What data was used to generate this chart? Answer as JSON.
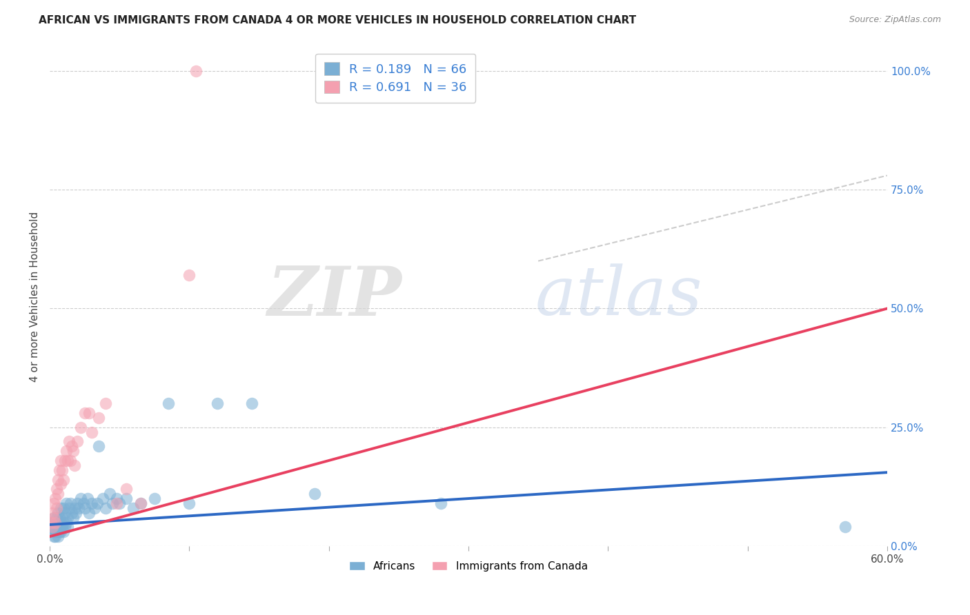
{
  "title": "AFRICAN VS IMMIGRANTS FROM CANADA 4 OR MORE VEHICLES IN HOUSEHOLD CORRELATION CHART",
  "source": "Source: ZipAtlas.com",
  "ylabel": "4 or more Vehicles in Household",
  "x_min": 0.0,
  "x_max": 0.6,
  "y_min": 0.0,
  "y_max": 1.05,
  "x_ticks": [
    0.0,
    0.1,
    0.2,
    0.3,
    0.4,
    0.5,
    0.6
  ],
  "x_tick_labels": [
    "0.0%",
    "",
    "",
    "",
    "",
    "",
    "60.0%"
  ],
  "y_tick_labels_right": [
    "0.0%",
    "25.0%",
    "50.0%",
    "75.0%",
    "100.0%"
  ],
  "y_tick_vals_right": [
    0.0,
    0.25,
    0.5,
    0.75,
    1.0
  ],
  "legend_africans_R": "0.189",
  "legend_africans_N": "66",
  "legend_canada_R": "0.691",
  "legend_canada_N": "36",
  "color_africans": "#7BAFD4",
  "color_canada": "#F4A0B0",
  "color_line_africans": "#2C68C4",
  "color_line_canada": "#E84060",
  "color_line_dashed": "#CCCCCC",
  "watermark_zip": "ZIP",
  "watermark_atlas": "atlas",
  "africans_x": [
    0.001,
    0.002,
    0.002,
    0.003,
    0.003,
    0.003,
    0.004,
    0.004,
    0.004,
    0.005,
    0.005,
    0.005,
    0.006,
    0.006,
    0.006,
    0.007,
    0.007,
    0.007,
    0.008,
    0.008,
    0.008,
    0.009,
    0.009,
    0.01,
    0.01,
    0.01,
    0.011,
    0.011,
    0.012,
    0.012,
    0.013,
    0.013,
    0.014,
    0.015,
    0.016,
    0.017,
    0.018,
    0.019,
    0.02,
    0.021,
    0.022,
    0.024,
    0.025,
    0.027,
    0.028,
    0.03,
    0.032,
    0.034,
    0.035,
    0.038,
    0.04,
    0.043,
    0.045,
    0.048,
    0.05,
    0.055,
    0.06,
    0.065,
    0.075,
    0.085,
    0.1,
    0.12,
    0.145,
    0.19,
    0.28,
    0.57
  ],
  "africans_y": [
    0.04,
    0.03,
    0.05,
    0.02,
    0.04,
    0.06,
    0.03,
    0.05,
    0.02,
    0.04,
    0.06,
    0.03,
    0.05,
    0.02,
    0.07,
    0.04,
    0.06,
    0.03,
    0.05,
    0.03,
    0.08,
    0.04,
    0.06,
    0.05,
    0.03,
    0.08,
    0.04,
    0.07,
    0.05,
    0.09,
    0.06,
    0.04,
    0.08,
    0.09,
    0.07,
    0.06,
    0.08,
    0.07,
    0.09,
    0.08,
    0.1,
    0.09,
    0.08,
    0.1,
    0.07,
    0.09,
    0.08,
    0.09,
    0.21,
    0.1,
    0.08,
    0.11,
    0.09,
    0.1,
    0.09,
    0.1,
    0.08,
    0.09,
    0.1,
    0.3,
    0.09,
    0.3,
    0.3,
    0.11,
    0.09,
    0.04
  ],
  "canada_x": [
    0.001,
    0.002,
    0.002,
    0.003,
    0.003,
    0.004,
    0.004,
    0.005,
    0.005,
    0.006,
    0.006,
    0.007,
    0.008,
    0.008,
    0.009,
    0.01,
    0.011,
    0.012,
    0.013,
    0.014,
    0.015,
    0.016,
    0.017,
    0.018,
    0.02,
    0.022,
    0.025,
    0.028,
    0.03,
    0.035,
    0.04,
    0.048,
    0.055,
    0.065,
    0.1,
    0.105
  ],
  "canada_y": [
    0.05,
    0.04,
    0.07,
    0.06,
    0.09,
    0.05,
    0.1,
    0.08,
    0.12,
    0.11,
    0.14,
    0.16,
    0.13,
    0.18,
    0.16,
    0.14,
    0.18,
    0.2,
    0.18,
    0.22,
    0.18,
    0.21,
    0.2,
    0.17,
    0.22,
    0.25,
    0.28,
    0.28,
    0.24,
    0.27,
    0.3,
    0.09,
    0.12,
    0.09,
    0.57,
    1.0
  ],
  "line_africans_x0": 0.0,
  "line_africans_y0": 0.045,
  "line_africans_x1": 0.6,
  "line_africans_y1": 0.155,
  "line_canada_x0": 0.0,
  "line_canada_y0": 0.02,
  "line_canada_x1": 0.6,
  "line_canada_y1": 0.5,
  "line_dashed_x0": 0.35,
  "line_dashed_y0": 0.6,
  "line_dashed_x1": 0.6,
  "line_dashed_y1": 0.78
}
